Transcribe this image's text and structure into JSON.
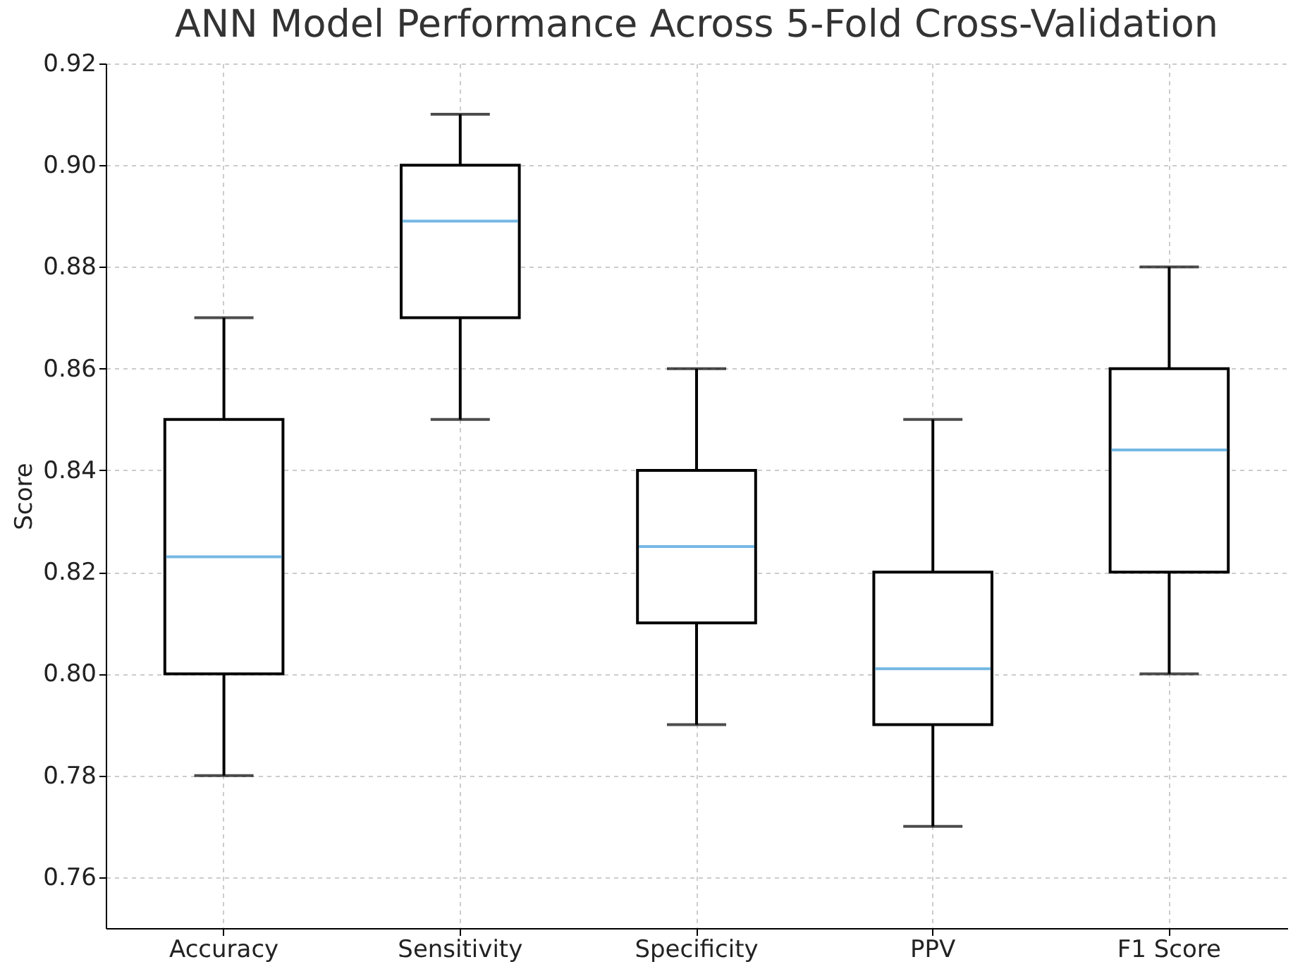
{
  "chart_data": {
    "type": "box",
    "title": "ANN Model Performance Across 5-Fold Cross-Validation",
    "ylabel": "Score",
    "categories": [
      "Accuracy",
      "Sensitivity",
      "Specificity",
      "PPV",
      "F1 Score"
    ],
    "boxes": [
      {
        "low": 0.78,
        "q1": 0.8,
        "median": 0.823,
        "q3": 0.85,
        "high": 0.87
      },
      {
        "low": 0.85,
        "q1": 0.87,
        "median": 0.889,
        "q3": 0.9,
        "high": 0.91
      },
      {
        "low": 0.79,
        "q1": 0.81,
        "median": 0.825,
        "q3": 0.84,
        "high": 0.86
      },
      {
        "low": 0.77,
        "q1": 0.79,
        "median": 0.801,
        "q3": 0.82,
        "high": 0.85
      },
      {
        "low": 0.8,
        "q1": 0.82,
        "median": 0.844,
        "q3": 0.86,
        "high": 0.88
      }
    ],
    "ylim": [
      0.75,
      0.92
    ],
    "yticks": [
      0.76,
      0.78,
      {
        "value": 0.8,
        "label": "0.80"
      },
      0.82,
      0.84,
      0.86,
      0.88,
      {
        "value": 0.9,
        "label": "0.90"
      },
      0.92
    ],
    "grid": true,
    "line_style": "solid"
  }
}
